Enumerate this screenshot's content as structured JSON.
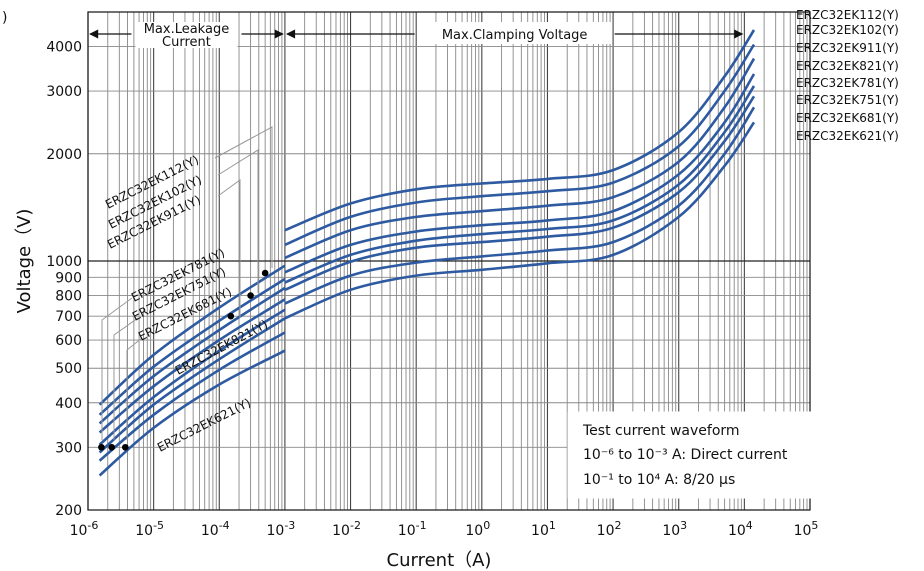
{
  "chart_data": {
    "type": "line",
    "xlabel": "Current（A)",
    "ylabel": "Voltage（V)",
    "x_scale": "log",
    "y_scale": "log",
    "xlim": [
      1e-06,
      100000
    ],
    "ylim": [
      200,
      5000
    ],
    "x_ticks": [
      {
        "value": 1e-06,
        "mant": "10",
        "exp": "-6"
      },
      {
        "value": 1e-05,
        "mant": "10",
        "exp": "-5"
      },
      {
        "value": 0.0001,
        "mant": "10",
        "exp": "-4"
      },
      {
        "value": 0.001,
        "mant": "10",
        "exp": "-3"
      },
      {
        "value": 0.01,
        "mant": "10",
        "exp": "-2"
      },
      {
        "value": 0.1,
        "mant": "10",
        "exp": "-1"
      },
      {
        "value": 1,
        "mant": "10",
        "exp": "0"
      },
      {
        "value": 10,
        "mant": "10",
        "exp": "1"
      },
      {
        "value": 100,
        "mant": "10",
        "exp": "2"
      },
      {
        "value": 1000,
        "mant": "10",
        "exp": "3"
      },
      {
        "value": 10000,
        "mant": "10",
        "exp": "4"
      },
      {
        "value": 100000,
        "mant": "10",
        "exp": "5"
      }
    ],
    "y_ticks": [
      {
        "value": 200,
        "label": "200"
      },
      {
        "value": 300,
        "label": "300"
      },
      {
        "value": 400,
        "label": "400"
      },
      {
        "value": 500,
        "label": "500"
      },
      {
        "value": 600,
        "label": "600"
      },
      {
        "value": 700,
        "label": "700"
      },
      {
        "value": 800,
        "label": "800"
      },
      {
        "value": 900,
        "label": "900"
      },
      {
        "value": 1000,
        "label": "1000"
      },
      {
        "value": 2000,
        "label": "2000"
      },
      {
        "value": 3000,
        "label": "3000"
      },
      {
        "value": 4000,
        "label": "4000"
      }
    ],
    "regions": [
      {
        "label_line1": "Max.Leakage",
        "label_line2": "Current",
        "x_from": 1e-06,
        "x_to": 0.001
      },
      {
        "label_line1": "Max.Clamping Voltage",
        "label_line2": "",
        "x_from": 0.001,
        "x_to": 10000
      }
    ],
    "legend_box": {
      "title": "Test current waveform",
      "line1": "10⁻⁶ to 10⁻³ A: Direct current",
      "line2": "10⁻¹ to 10⁴ A: 8/20 µs"
    },
    "corner_text": ")",
    "series": [
      {
        "name": "ERZC32EK112(Y)",
        "label_group": "high",
        "label_order": 0,
        "leakage": [
          [
            1.5e-06,
            395
          ],
          [
            1e-05,
            545
          ],
          [
            0.0001,
            740
          ],
          [
            0.001,
            970
          ]
        ],
        "leakage_dot": [
          0.0005,
          925
        ],
        "clamping": [
          [
            0.001,
            1220
          ],
          [
            0.01,
            1450
          ],
          [
            0.1,
            1590
          ],
          [
            1,
            1650
          ],
          [
            10,
            1700
          ],
          [
            100,
            1800
          ],
          [
            1000,
            2300
          ],
          [
            5000,
            3300
          ],
          [
            14000,
            4450
          ]
        ]
      },
      {
        "name": "ERZC32EK102(Y)",
        "label_group": "high",
        "label_order": 1,
        "leakage": [
          [
            1.5e-06,
            370
          ],
          [
            1e-05,
            505
          ],
          [
            0.0001,
            680
          ],
          [
            0.001,
            890
          ]
        ],
        "leakage_dot": [
          0.0003,
          800
        ],
        "clamping": [
          [
            0.001,
            1110
          ],
          [
            0.01,
            1330
          ],
          [
            0.1,
            1460
          ],
          [
            1,
            1520
          ],
          [
            10,
            1570
          ],
          [
            100,
            1660
          ],
          [
            1000,
            2100
          ],
          [
            5000,
            3000
          ],
          [
            14000,
            4050
          ]
        ]
      },
      {
        "name": "ERZC32EK911(Y)",
        "label_group": "high",
        "label_order": 2,
        "leakage": [
          [
            1.5e-06,
            350
          ],
          [
            1e-05,
            475
          ],
          [
            0.0001,
            640
          ],
          [
            0.001,
            840
          ]
        ],
        "leakage_dot": [
          0.00015,
          700
        ],
        "clamping": [
          [
            0.001,
            1020
          ],
          [
            0.01,
            1220
          ],
          [
            0.1,
            1330
          ],
          [
            1,
            1380
          ],
          [
            10,
            1430
          ],
          [
            100,
            1510
          ],
          [
            1000,
            1900
          ],
          [
            5000,
            2700
          ],
          [
            14000,
            3700
          ]
        ]
      },
      {
        "name": "ERZC32EK821(Y)",
        "label_group": "rot",
        "label_order": 0,
        "leakage": [
          [
            1.5e-06,
            330
          ],
          [
            1e-05,
            445
          ],
          [
            0.0001,
            600
          ],
          [
            0.001,
            780
          ]
        ],
        "leakage_dot": null,
        "clamping": [
          [
            0.001,
            930
          ],
          [
            0.01,
            1110
          ],
          [
            0.1,
            1210
          ],
          [
            1,
            1260
          ],
          [
            10,
            1300
          ],
          [
            100,
            1380
          ],
          [
            1000,
            1750
          ],
          [
            5000,
            2450
          ],
          [
            14000,
            3350
          ]
        ]
      },
      {
        "name": "ERZC32EK781(Y)",
        "label_group": "mid",
        "label_order": 0,
        "leakage": [
          [
            1.5e-06,
            305
          ],
          [
            1e-05,
            415
          ],
          [
            0.0001,
            560
          ],
          [
            0.001,
            730
          ]
        ],
        "leakage_dot": null,
        "clamping": [
          [
            0.001,
            870
          ],
          [
            0.01,
            1040
          ],
          [
            0.1,
            1140
          ],
          [
            1,
            1190
          ],
          [
            10,
            1230
          ],
          [
            100,
            1300
          ],
          [
            1000,
            1640
          ],
          [
            5000,
            2300
          ],
          [
            14000,
            3100
          ]
        ]
      },
      {
        "name": "ERZC32EK751(Y)",
        "label_group": "mid",
        "label_order": 1,
        "leakage": [
          [
            1.5e-06,
            290
          ],
          [
            1e-05,
            395
          ],
          [
            0.0001,
            530
          ],
          [
            0.001,
            690
          ]
        ],
        "leakage_dot": null,
        "clamping": [
          [
            0.001,
            830
          ],
          [
            0.01,
            995
          ],
          [
            0.1,
            1090
          ],
          [
            1,
            1130
          ],
          [
            10,
            1170
          ],
          [
            100,
            1240
          ],
          [
            1000,
            1560
          ],
          [
            5000,
            2170
          ],
          [
            14000,
            2900
          ]
        ]
      },
      {
        "name": "ERZC32EK681(Y)",
        "label_group": "mid",
        "label_order": 2,
        "leakage": [
          [
            1.5e-06,
            275
          ],
          [
            1e-05,
            370
          ],
          [
            0.0001,
            495
          ],
          [
            0.001,
            630
          ]
        ],
        "leakage_dot": null,
        "clamping": [
          [
            0.001,
            760
          ],
          [
            0.01,
            910
          ],
          [
            0.1,
            990
          ],
          [
            1,
            1030
          ],
          [
            10,
            1070
          ],
          [
            100,
            1130
          ],
          [
            1000,
            1430
          ],
          [
            5000,
            2000
          ],
          [
            14000,
            2700
          ]
        ]
      },
      {
        "name": "ERZC32EK621(Y)",
        "label_group": "low",
        "label_order": 0,
        "leakage": [
          [
            1.5e-06,
            250
          ],
          [
            1e-05,
            340
          ],
          [
            0.0001,
            450
          ],
          [
            0.001,
            560
          ]
        ],
        "leakage_dot": null,
        "clamping": [
          [
            0.001,
            690
          ],
          [
            0.01,
            830
          ],
          [
            0.1,
            910
          ],
          [
            1,
            945
          ],
          [
            10,
            985
          ],
          [
            100,
            1040
          ],
          [
            1000,
            1330
          ],
          [
            5000,
            1850
          ],
          [
            14000,
            2450
          ]
        ]
      }
    ],
    "low_dots": [
      [
        1.6e-06,
        300
      ],
      [
        2.3e-06,
        300
      ],
      [
        3.7e-06,
        300
      ]
    ],
    "series_color": "#2d5aa0",
    "grid": true
  }
}
